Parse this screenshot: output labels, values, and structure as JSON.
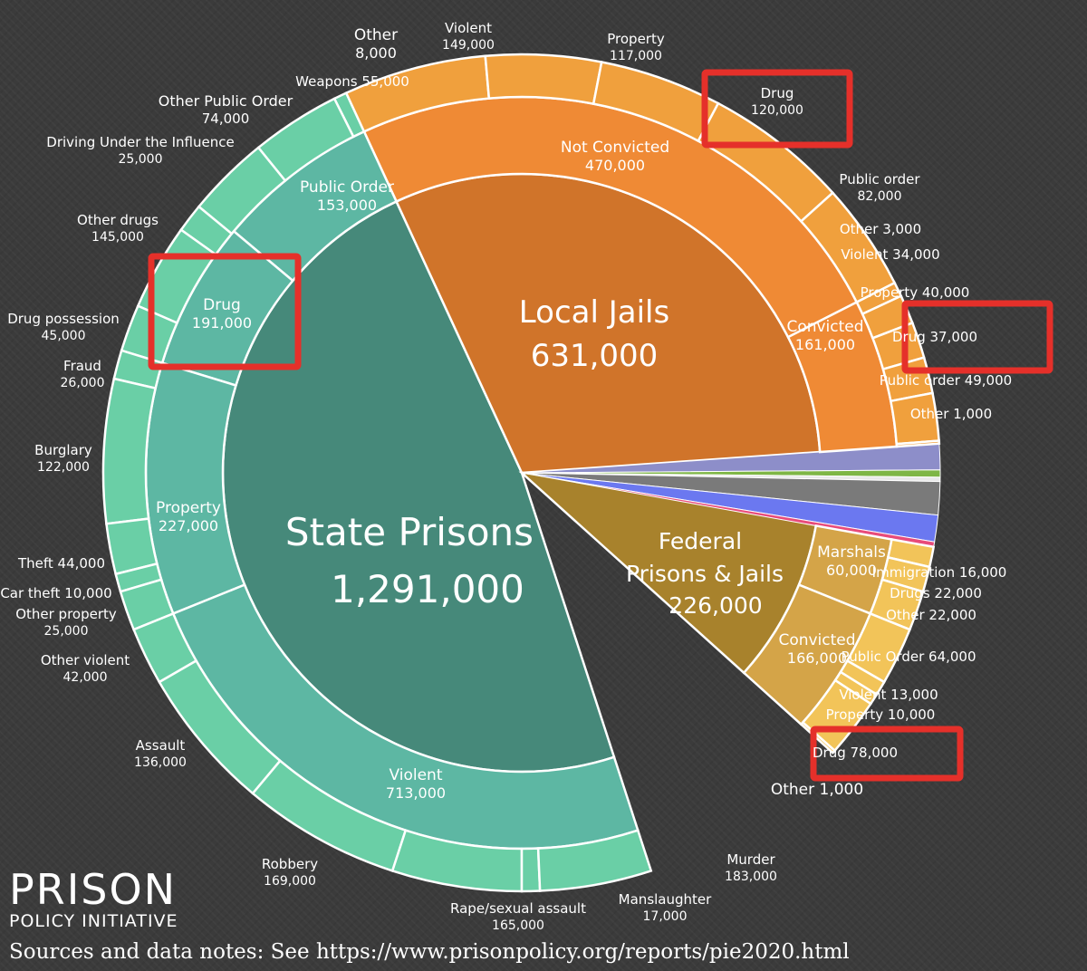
{
  "logo": {
    "line1": "PRISON",
    "line2": "POLICY INITIATIVE"
  },
  "source_note": "Sources and data notes: See https://www.prisonpolicy.org/reports/pie2020.html",
  "chart_data": {
    "type": "sunburst",
    "title": "",
    "unit": "people",
    "center": [
      {
        "id": "state",
        "label": "State Prisons",
        "value": "1,291,000",
        "color": "#46897a"
      },
      {
        "id": "jails",
        "label": "Local Jails",
        "value": "631,000",
        "color": "#d0742a"
      },
      {
        "id": "federal",
        "label": "Federal",
        "label2": "Prisons & Jails",
        "value": "226,000",
        "color": "#a8822c"
      }
    ],
    "middle_ring": [
      {
        "label": "Public Order",
        "value": "153,000",
        "parent": "state"
      },
      {
        "label": "Drug",
        "value": "191,000",
        "parent": "state",
        "highlighted": true
      },
      {
        "label": "Property",
        "value": "227,000",
        "parent": "state"
      },
      {
        "label": "Violent",
        "value": "713,000",
        "parent": "state"
      },
      {
        "label": "Not Convicted",
        "value": "470,000",
        "parent": "jails"
      },
      {
        "label": "Convicted",
        "value": "161,000",
        "parent": "jails"
      },
      {
        "label": "Marshals",
        "value": "60,000",
        "parent": "federal"
      },
      {
        "label": "Convicted",
        "value": "166,000",
        "parent": "federal"
      }
    ],
    "outer_ring": [
      {
        "label": "Other",
        "value": "8,000",
        "parent": "state"
      },
      {
        "label": "Weapons",
        "value": "55,000",
        "parent": "state"
      },
      {
        "label": "Other Public Order",
        "value": "74,000",
        "parent": "state"
      },
      {
        "label": "Driving Under the Influence",
        "value": "25,000",
        "parent": "state"
      },
      {
        "label": "Other drugs",
        "value": "145,000",
        "parent": "state"
      },
      {
        "label": "Drug possession",
        "value": "45,000",
        "parent": "state"
      },
      {
        "label": "Fraud",
        "value": "26,000",
        "parent": "state"
      },
      {
        "label": "Burglary",
        "value": "122,000",
        "parent": "state"
      },
      {
        "label": "Theft",
        "value": "44,000",
        "parent": "state"
      },
      {
        "label": "Car theft",
        "value": "10,000",
        "parent": "state"
      },
      {
        "label": "Other property",
        "value": "25,000",
        "parent": "state"
      },
      {
        "label": "Other violent",
        "value": "42,000",
        "parent": "state"
      },
      {
        "label": "Assault",
        "value": "136,000",
        "parent": "state"
      },
      {
        "label": "Robbery",
        "value": "169,000",
        "parent": "state"
      },
      {
        "label": "Rape/sexual assault",
        "value": "165,000",
        "parent": "state"
      },
      {
        "label": "Manslaughter",
        "value": "17,000",
        "parent": "state"
      },
      {
        "label": "Murder",
        "value": "183,000",
        "parent": "state"
      },
      {
        "label": "Violent",
        "value": "149,000",
        "parent": "jails"
      },
      {
        "label": "Property",
        "value": "117,000",
        "parent": "jails"
      },
      {
        "label": "Drug",
        "value": "120,000",
        "parent": "jails",
        "highlighted": true
      },
      {
        "label": "Public order",
        "value": "82,000",
        "parent": "jails"
      },
      {
        "label": "Other",
        "value": "3,000",
        "parent": "jails"
      },
      {
        "label": "Violent",
        "value": "34,000",
        "parent": "jails"
      },
      {
        "label": "Property",
        "value": "40,000",
        "parent": "jails"
      },
      {
        "label": "Drug",
        "value": "37,000",
        "parent": "jails",
        "highlighted": true
      },
      {
        "label": "Public order",
        "value": "49,000",
        "parent": "jails"
      },
      {
        "label": "Other",
        "value": "1,000",
        "parent": "jails"
      },
      {
        "label": "Immigration",
        "value": "16,000",
        "parent": "federal"
      },
      {
        "label": "Drugs",
        "value": "22,000",
        "parent": "federal"
      },
      {
        "label": "Other",
        "value": "22,000",
        "parent": "federal"
      },
      {
        "label": "Public Order",
        "value": "64,000",
        "parent": "federal"
      },
      {
        "label": "Violent",
        "value": "13,000",
        "parent": "federal"
      },
      {
        "label": "Property",
        "value": "10,000",
        "parent": "federal"
      },
      {
        "label": "Drug",
        "value": "78,000",
        "parent": "federal",
        "highlighted": true
      },
      {
        "label": "Other",
        "value": "1,000",
        "parent": "federal"
      }
    ],
    "colors": {
      "state_center": "#46897a",
      "state_mid": "#5db7a3",
      "state_outer": "#6acfa6",
      "jail_center": "#d0742a",
      "jail_mid": "#ef8a35",
      "jail_outer": "#f0a03d",
      "fed_center": "#a8822c",
      "fed_mid": "#d4a448",
      "fed_outer": "#f2c459",
      "other_purple": "#8d8ec9",
      "other_green": "#7eb645",
      "other_gray": "#7a7a7a",
      "other_blue": "#6b78f0",
      "highlight_box": "#e5302a"
    }
  }
}
